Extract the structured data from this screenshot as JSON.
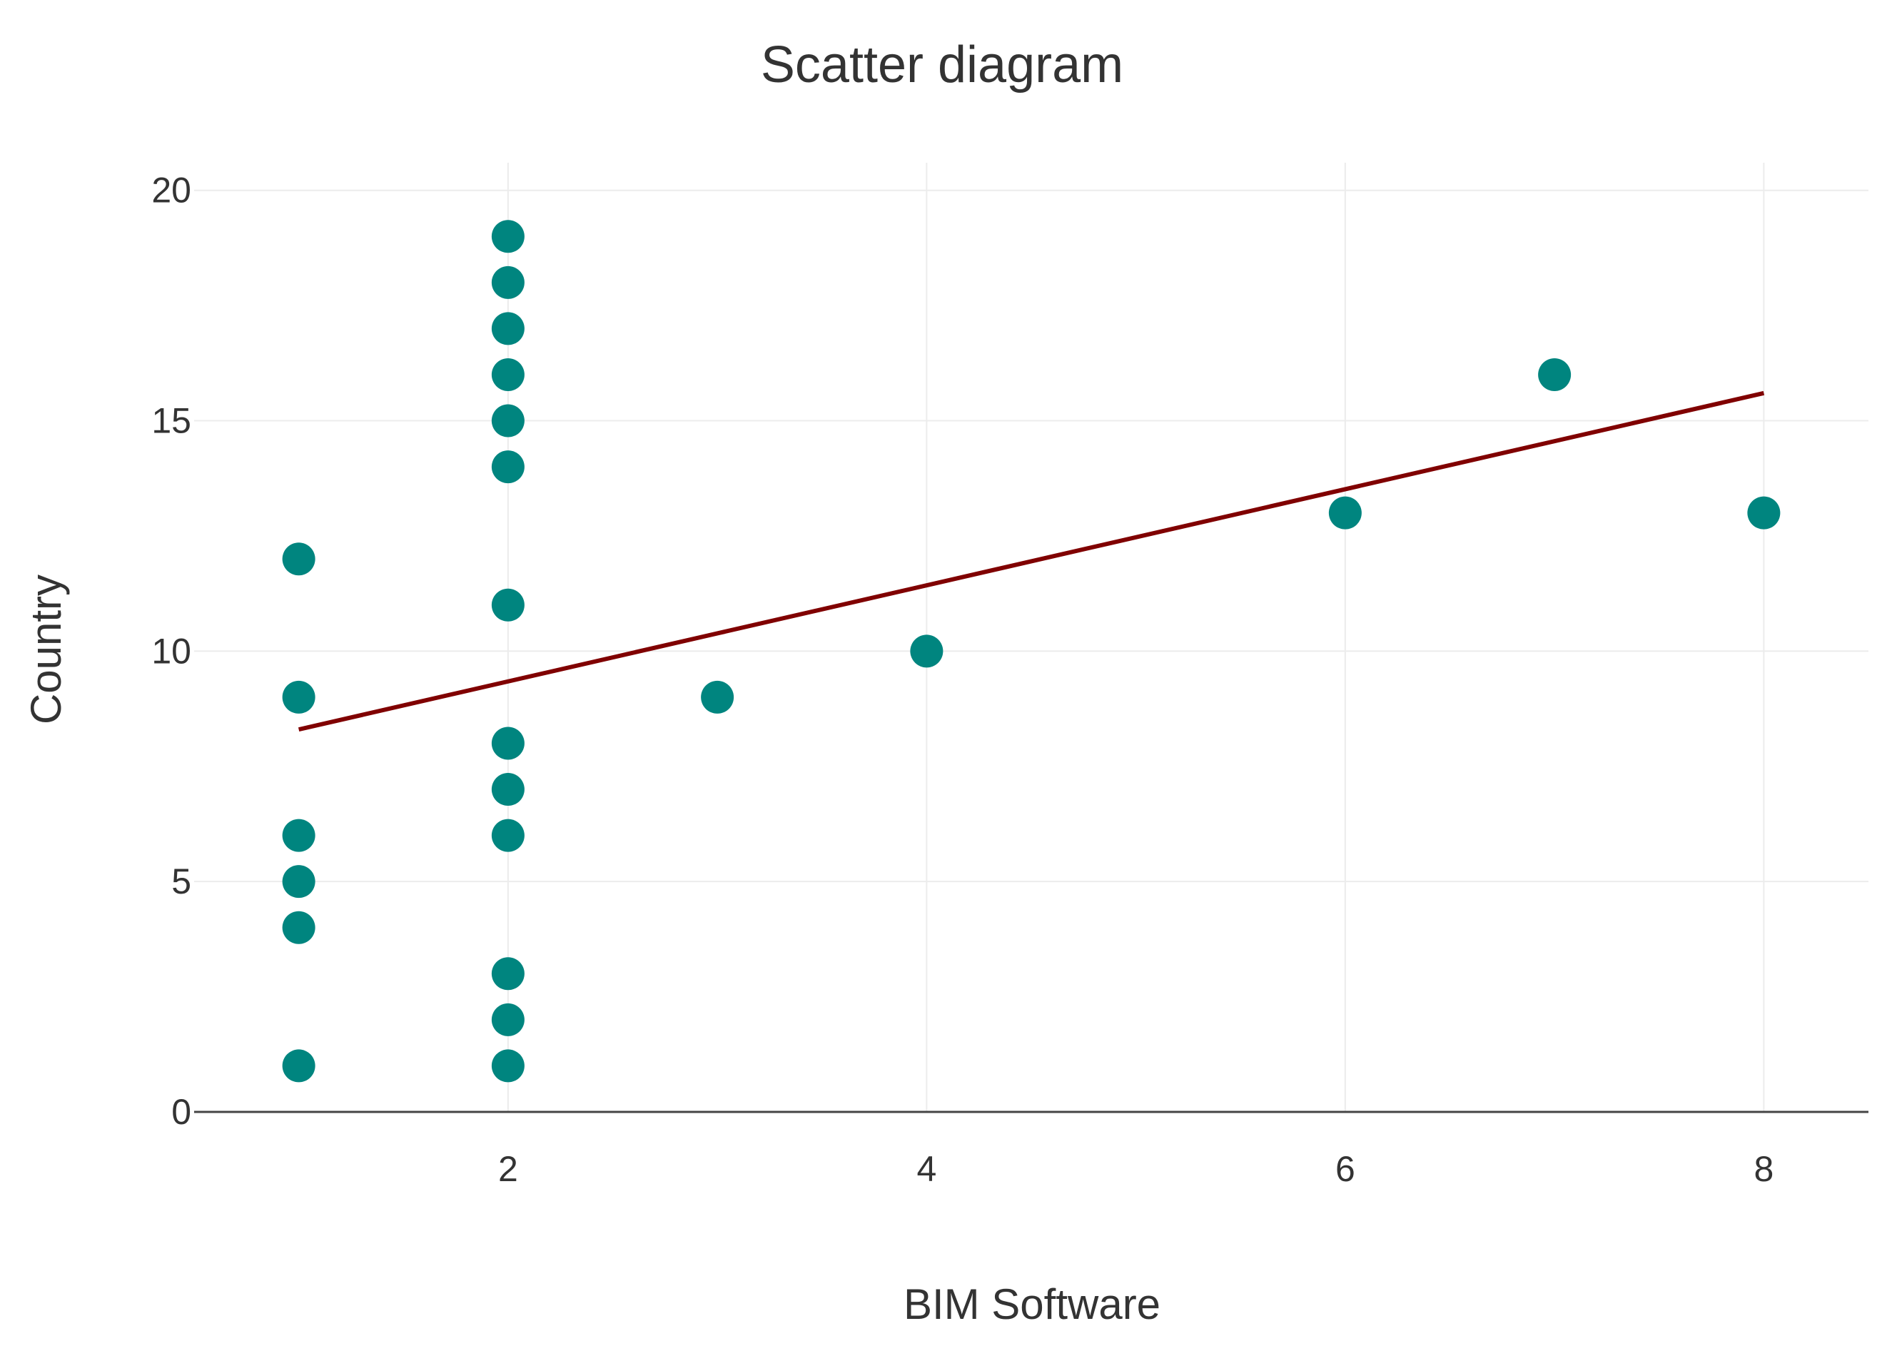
{
  "chart_data": {
    "type": "scatter",
    "title": "Scatter diagram",
    "xlabel": "BIM Software",
    "ylabel": "Country",
    "xlim": [
      0.5,
      8.5
    ],
    "ylim": [
      0,
      20.6
    ],
    "x_ticks": [
      2,
      4,
      6,
      8
    ],
    "y_ticks": [
      0,
      5,
      10,
      15,
      20
    ],
    "grid": true,
    "series": [
      {
        "color": "#00857f",
        "points": [
          {
            "x": 1,
            "y": 12
          },
          {
            "x": 1,
            "y": 9
          },
          {
            "x": 1,
            "y": 6
          },
          {
            "x": 1,
            "y": 5
          },
          {
            "x": 1,
            "y": 4
          },
          {
            "x": 1,
            "y": 1
          },
          {
            "x": 2,
            "y": 19
          },
          {
            "x": 2,
            "y": 18
          },
          {
            "x": 2,
            "y": 17
          },
          {
            "x": 2,
            "y": 16
          },
          {
            "x": 2,
            "y": 15
          },
          {
            "x": 2,
            "y": 14
          },
          {
            "x": 2,
            "y": 11
          },
          {
            "x": 2,
            "y": 8
          },
          {
            "x": 2,
            "y": 7
          },
          {
            "x": 2,
            "y": 6
          },
          {
            "x": 2,
            "y": 3
          },
          {
            "x": 2,
            "y": 2
          },
          {
            "x": 2,
            "y": 1
          },
          {
            "x": 3,
            "y": 9
          },
          {
            "x": 4,
            "y": 10
          },
          {
            "x": 6,
            "y": 13
          },
          {
            "x": 7,
            "y": 16
          },
          {
            "x": 8,
            "y": 13
          }
        ]
      }
    ],
    "trendline": {
      "color": "#800000",
      "from": {
        "x": 1,
        "y": 8.3
      },
      "to": {
        "x": 8,
        "y": 15.6
      }
    }
  }
}
